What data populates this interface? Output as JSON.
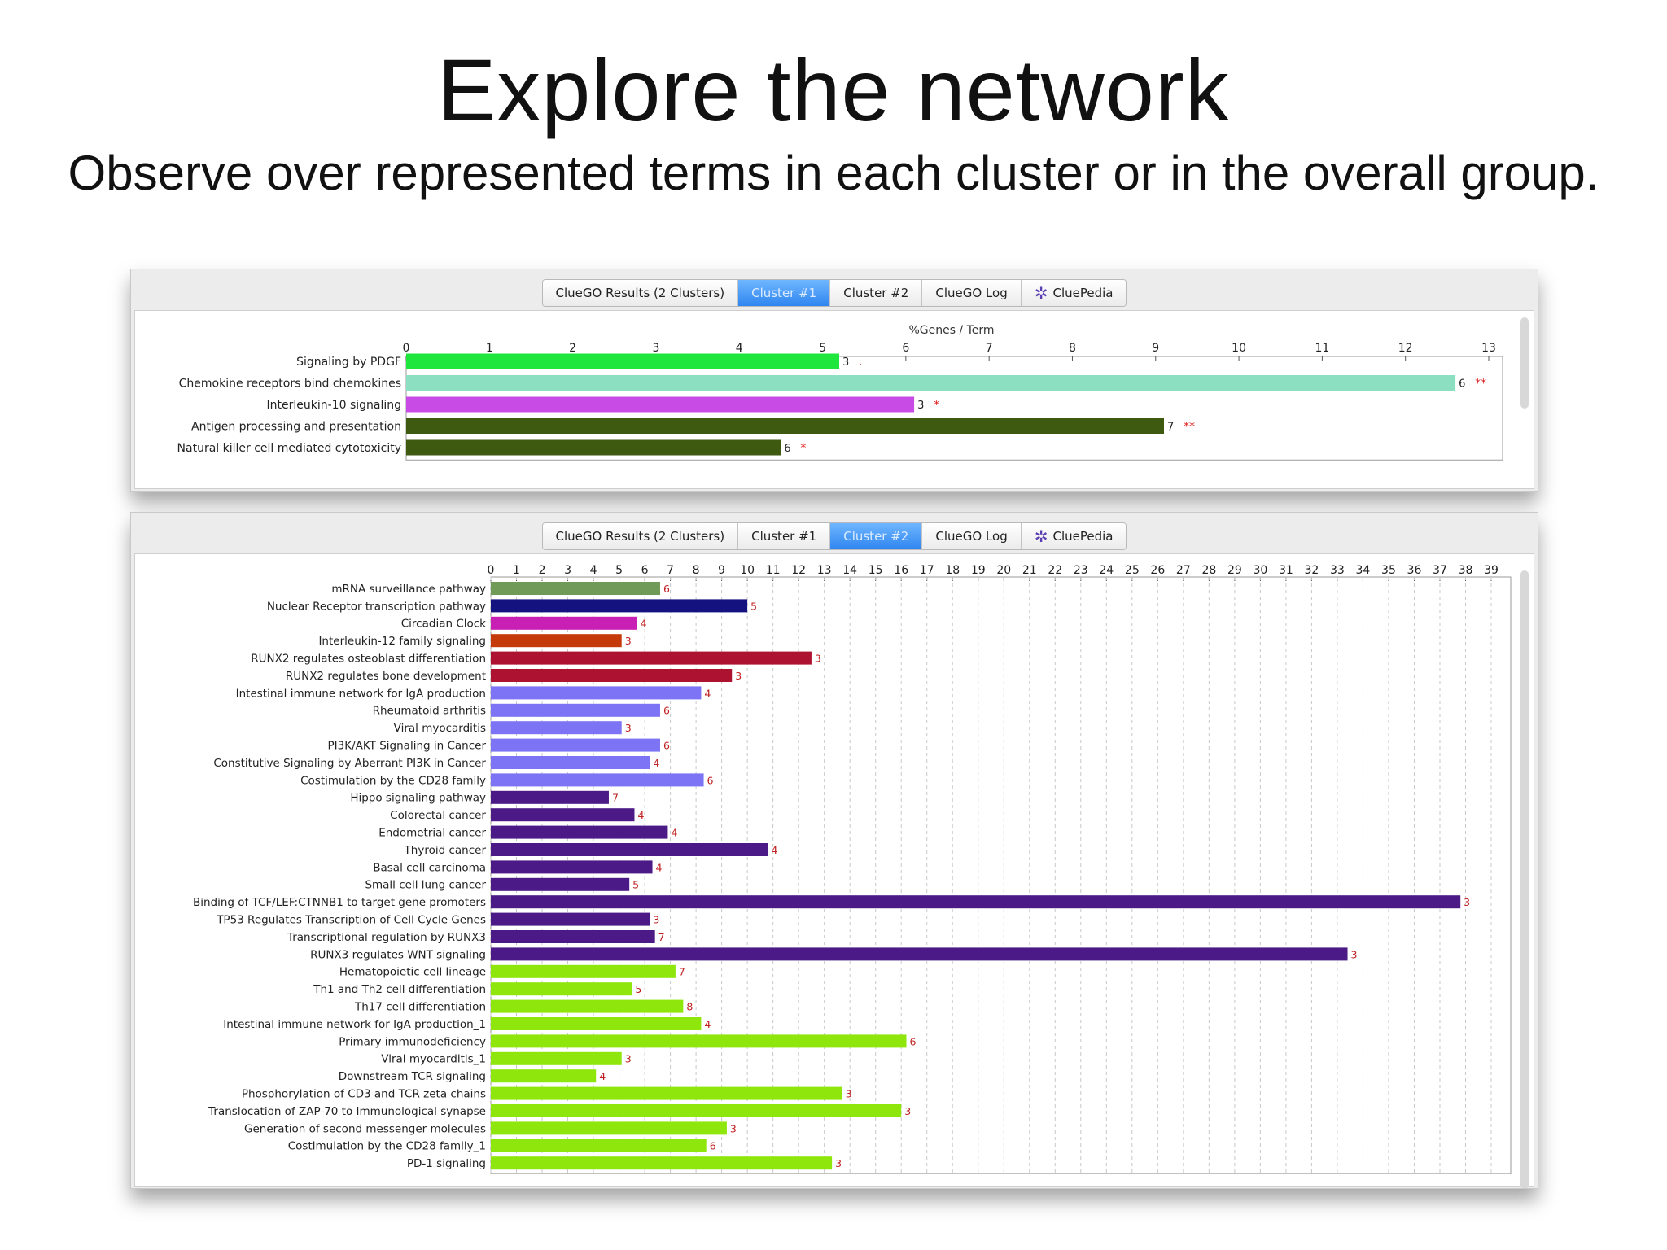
{
  "slide": {
    "title": "Explore the network",
    "subtitle": "Observe over represented terms in each cluster or in the overall group."
  },
  "windows": [
    {
      "tabs": [
        "ClueGO Results (2 Clusters)",
        "Cluster #1",
        "Cluster #2",
        "ClueGO Log",
        "CluePedia"
      ],
      "active_tab": 1
    },
    {
      "tabs": [
        "ClueGO Results (2 Clusters)",
        "Cluster #1",
        "Cluster #2",
        "ClueGO Log",
        "CluePedia"
      ],
      "active_tab": 2
    }
  ],
  "chart_data": [
    {
      "type": "bar",
      "orientation": "horizontal",
      "title": "%Genes / Term",
      "xlim": [
        0,
        13
      ],
      "xticks": [
        0,
        1,
        2,
        3,
        4,
        5,
        6,
        7,
        8,
        9,
        10,
        11,
        12,
        13
      ],
      "grid": false,
      "categories": [
        "Signaling by PDGF",
        "Chemokine receptors bind chemokines",
        "Interleukin-10 signaling",
        "Antigen processing and presentation",
        "Natural killer cell mediated cytotoxicity"
      ],
      "values": [
        5.2,
        12.6,
        6.1,
        9.1,
        4.5
      ],
      "bar_labels": [
        "3",
        "6",
        "3",
        "7",
        "6"
      ],
      "significance": [
        ".",
        "**",
        "*",
        "**",
        "*"
      ],
      "colors": [
        "#1ee63c",
        "#8ddfc2",
        "#c84be6",
        "#3d5a10",
        "#3d5a10"
      ]
    },
    {
      "type": "bar",
      "orientation": "horizontal",
      "title": "%Genes / Term",
      "xlim": [
        0,
        39
      ],
      "xticks": [
        0,
        1,
        2,
        3,
        4,
        5,
        6,
        7,
        8,
        9,
        10,
        11,
        12,
        13,
        14,
        15,
        16,
        17,
        18,
        19,
        20,
        21,
        22,
        23,
        24,
        25,
        26,
        27,
        28,
        29,
        30,
        31,
        32,
        33,
        34,
        35,
        36,
        37,
        38,
        39
      ],
      "grid": true,
      "categories": [
        "mRNA surveillance pathway",
        "Nuclear Receptor transcription pathway",
        "Circadian Clock",
        "Interleukin-12 family signaling",
        "RUNX2 regulates osteoblast differentiation",
        "RUNX2 regulates bone development",
        "Intestinal immune network for IgA production",
        "Rheumatoid arthritis",
        "Viral myocarditis",
        "PI3K/AKT Signaling in Cancer",
        "Constitutive Signaling by Aberrant PI3K in Cancer",
        "Costimulation by the CD28 family",
        "Hippo signaling pathway",
        "Colorectal cancer",
        "Endometrial cancer",
        "Thyroid cancer",
        "Basal cell carcinoma",
        "Small cell lung cancer",
        "Binding of TCF/LEF:CTNNB1 to target gene promoters",
        "TP53 Regulates Transcription of Cell Cycle Genes",
        "Transcriptional regulation by RUNX3",
        "RUNX3 regulates WNT signaling",
        "Hematopoietic cell lineage",
        "Th1 and Th2 cell differentiation",
        "Th17 cell differentiation",
        "Intestinal immune network for IgA production_1",
        "Primary immunodeficiency",
        "Viral myocarditis_1",
        "Downstream TCR signaling",
        "Phosphorylation of CD3 and TCR zeta chains",
        "Translocation of ZAP-70 to Immunological synapse",
        "Generation of second messenger molecules",
        "Costimulation by the CD28 family_1",
        "PD-1 signaling"
      ],
      "values": [
        6.6,
        10.0,
        5.7,
        5.1,
        12.5,
        9.4,
        8.2,
        6.6,
        5.1,
        6.6,
        6.2,
        8.3,
        4.6,
        5.6,
        6.9,
        10.8,
        6.3,
        5.4,
        37.8,
        6.2,
        6.4,
        33.4,
        7.2,
        5.5,
        7.5,
        8.2,
        16.2,
        5.1,
        4.1,
        13.7,
        16.0,
        9.2,
        8.4,
        13.3
      ],
      "bar_labels": [
        "6",
        "5",
        "4",
        "3",
        "3",
        "3",
        "4",
        "6",
        "3",
        "6",
        "4",
        "6",
        "7",
        "4",
        "4",
        "4",
        "4",
        "5",
        "3",
        "3",
        "7",
        "3",
        "7",
        "5",
        "8",
        "4",
        "6",
        "3",
        "4",
        "3",
        "3",
        "3",
        "6",
        "3"
      ],
      "colors": [
        "#6f9a57",
        "#14127f",
        "#c820b4",
        "#c53a0a",
        "#ad1230",
        "#ad1230",
        "#7c74f4",
        "#7c74f4",
        "#7c74f4",
        "#7c74f4",
        "#7c74f4",
        "#7c74f4",
        "#4b1a86",
        "#4b1a86",
        "#4b1a86",
        "#4b1a86",
        "#4b1a86",
        "#4b1a86",
        "#4b1a86",
        "#4b1a86",
        "#4b1a86",
        "#4b1a86",
        "#8fe60c",
        "#8fe60c",
        "#8fe60c",
        "#8fe60c",
        "#8fe60c",
        "#8fe60c",
        "#8fe60c",
        "#8fe60c",
        "#8fe60c",
        "#8fe60c",
        "#8fe60c",
        "#8fe60c"
      ]
    }
  ]
}
